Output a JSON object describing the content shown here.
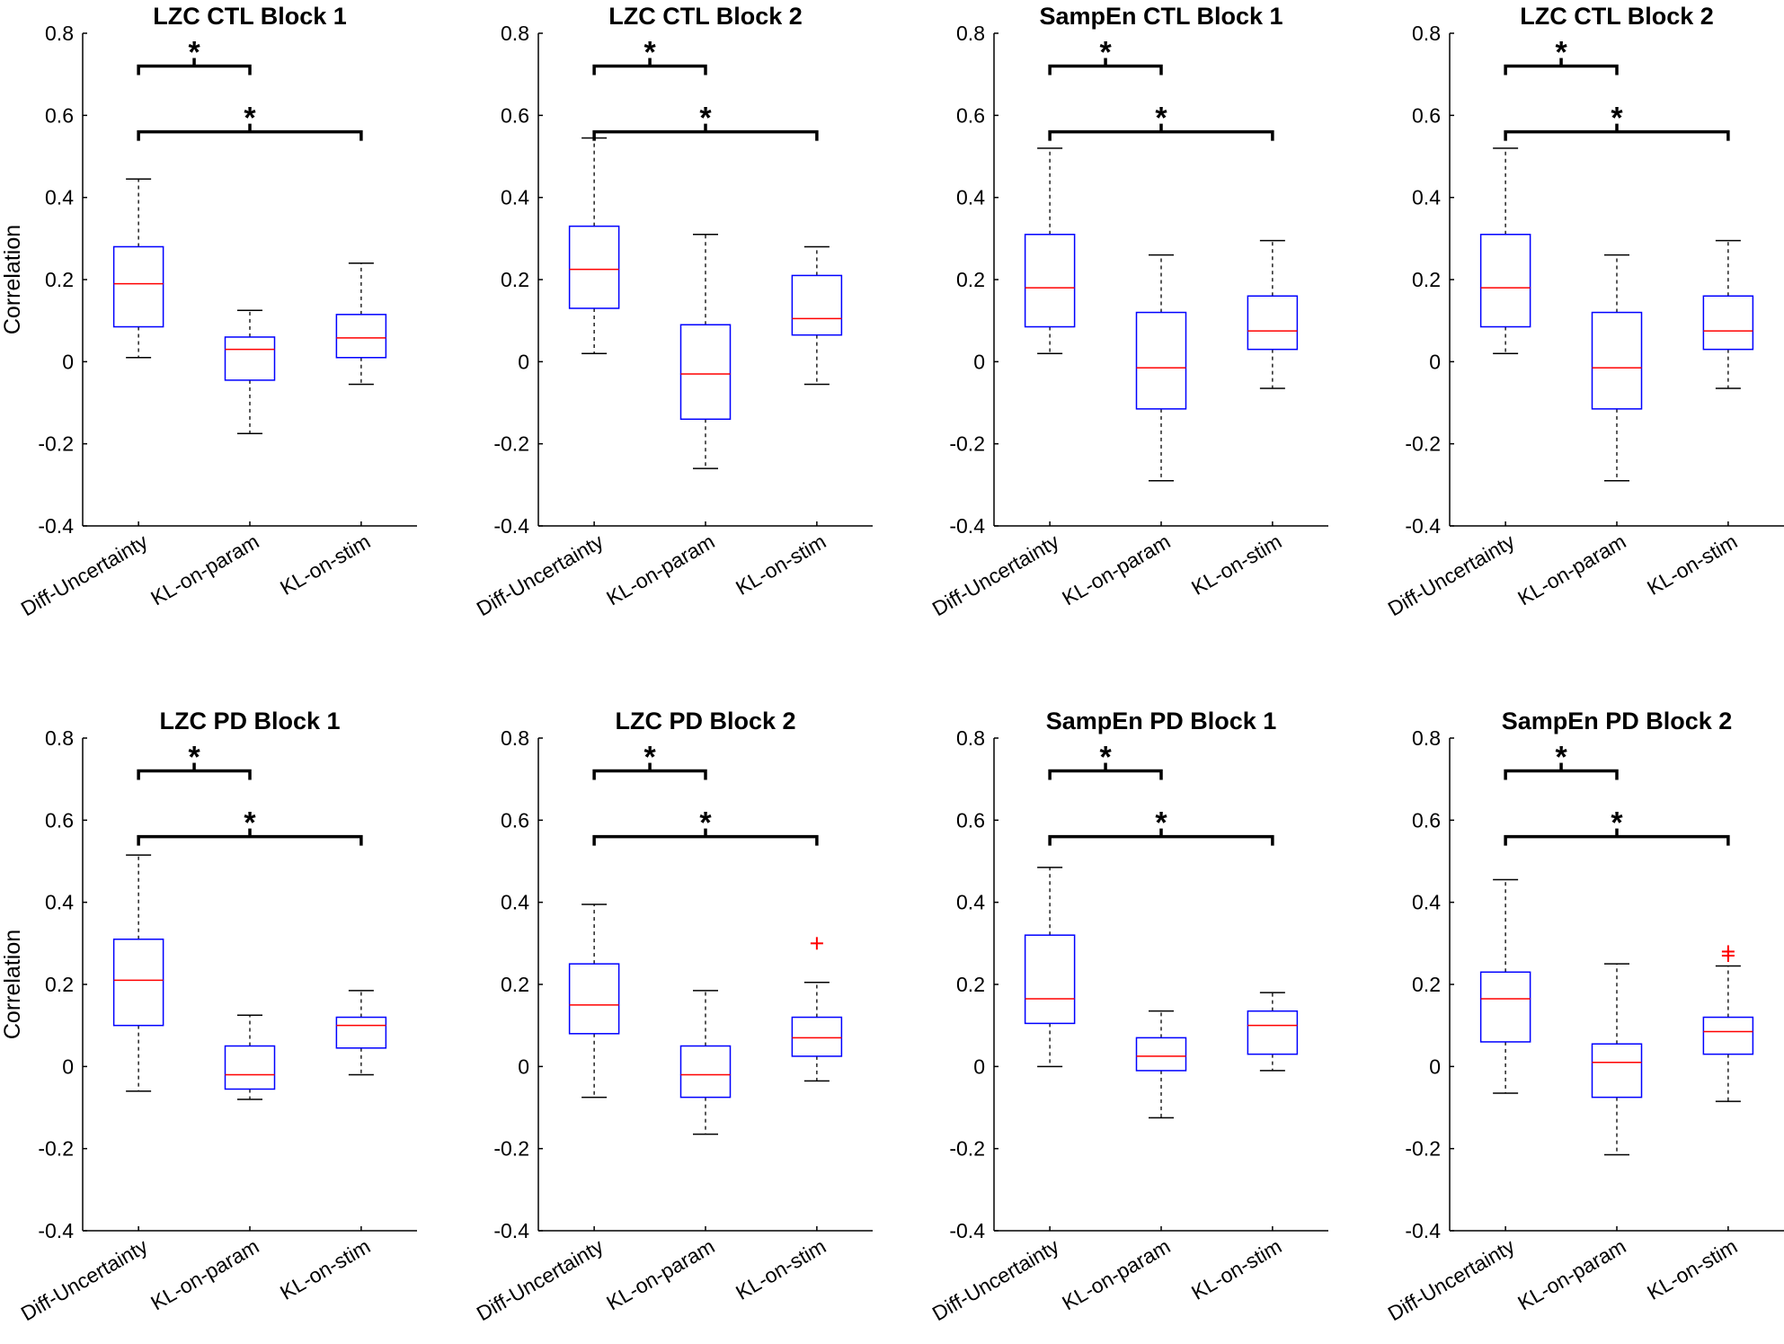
{
  "chart_data": [
    {
      "type": "box",
      "title": "LZC CTL Block 1",
      "ylabel": "Correlation",
      "ylim": [
        -0.4,
        0.8
      ],
      "yticks": [
        "-0.4",
        "-0.2",
        "0",
        "0.2",
        "0.4",
        "0.6",
        "0.8"
      ],
      "categories": [
        "Diff-Uncertainty",
        "KL-on-param",
        "KL-on-stim"
      ],
      "boxes": [
        {
          "whisker_low": 0.01,
          "q1": 0.085,
          "median": 0.19,
          "q3": 0.28,
          "whisker_high": 0.445,
          "outliers": []
        },
        {
          "whisker_low": -0.175,
          "q1": -0.045,
          "median": 0.03,
          "q3": 0.06,
          "whisker_high": 0.125,
          "outliers": []
        },
        {
          "whisker_low": -0.055,
          "q1": 0.01,
          "median": 0.058,
          "q3": 0.115,
          "whisker_high": 0.24,
          "outliers": []
        }
      ],
      "significance": [
        {
          "from": 0,
          "to": 1,
          "level": 0.72,
          "label": "*"
        },
        {
          "from": 0,
          "to": 2,
          "level": 0.56,
          "label": "*"
        }
      ]
    },
    {
      "type": "box",
      "title": "LZC CTL Block 2",
      "ylabel": "",
      "ylim": [
        -0.4,
        0.8
      ],
      "yticks": [
        "-0.4",
        "-0.2",
        "0",
        "0.2",
        "0.4",
        "0.6",
        "0.8"
      ],
      "categories": [
        "Diff-Uncertainty",
        "KL-on-param",
        "KL-on-stim"
      ],
      "boxes": [
        {
          "whisker_low": 0.02,
          "q1": 0.13,
          "median": 0.225,
          "q3": 0.33,
          "whisker_high": 0.545,
          "outliers": []
        },
        {
          "whisker_low": -0.26,
          "q1": -0.14,
          "median": -0.03,
          "q3": 0.09,
          "whisker_high": 0.31,
          "outliers": []
        },
        {
          "whisker_low": -0.055,
          "q1": 0.065,
          "median": 0.105,
          "q3": 0.21,
          "whisker_high": 0.28,
          "outliers": []
        }
      ],
      "significance": [
        {
          "from": 0,
          "to": 1,
          "level": 0.72,
          "label": "*"
        },
        {
          "from": 0,
          "to": 2,
          "level": 0.56,
          "label": "*"
        }
      ]
    },
    {
      "type": "box",
      "title": "SampEn CTL Block 1",
      "ylabel": "",
      "ylim": [
        -0.4,
        0.8
      ],
      "yticks": [
        "-0.4",
        "-0.2",
        "0",
        "0.2",
        "0.4",
        "0.6",
        "0.8"
      ],
      "categories": [
        "Diff-Uncertainty",
        "KL-on-param",
        "KL-on-stim"
      ],
      "boxes": [
        {
          "whisker_low": 0.02,
          "q1": 0.085,
          "median": 0.18,
          "q3": 0.31,
          "whisker_high": 0.52,
          "outliers": []
        },
        {
          "whisker_low": -0.29,
          "q1": -0.115,
          "median": -0.015,
          "q3": 0.12,
          "whisker_high": 0.26,
          "outliers": []
        },
        {
          "whisker_low": -0.065,
          "q1": 0.03,
          "median": 0.075,
          "q3": 0.16,
          "whisker_high": 0.295,
          "outliers": []
        }
      ],
      "significance": [
        {
          "from": 0,
          "to": 1,
          "level": 0.72,
          "label": "*"
        },
        {
          "from": 0,
          "to": 2,
          "level": 0.56,
          "label": "*"
        }
      ]
    },
    {
      "type": "box",
      "title": "LZC CTL Block 2",
      "ylabel": "",
      "ylim": [
        -0.4,
        0.8
      ],
      "yticks": [
        "-0.4",
        "-0.2",
        "0",
        "0.2",
        "0.4",
        "0.6",
        "0.8"
      ],
      "categories": [
        "Diff-Uncertainty",
        "KL-on-param",
        "KL-on-stim"
      ],
      "boxes": [
        {
          "whisker_low": 0.02,
          "q1": 0.085,
          "median": 0.18,
          "q3": 0.31,
          "whisker_high": 0.52,
          "outliers": []
        },
        {
          "whisker_low": -0.29,
          "q1": -0.115,
          "median": -0.015,
          "q3": 0.12,
          "whisker_high": 0.26,
          "outliers": []
        },
        {
          "whisker_low": -0.065,
          "q1": 0.03,
          "median": 0.075,
          "q3": 0.16,
          "whisker_high": 0.295,
          "outliers": []
        }
      ],
      "significance": [
        {
          "from": 0,
          "to": 1,
          "level": 0.72,
          "label": "*"
        },
        {
          "from": 0,
          "to": 2,
          "level": 0.56,
          "label": "*"
        }
      ]
    },
    {
      "type": "box",
      "title": "LZC PD Block 1",
      "ylabel": "Correlation",
      "ylim": [
        -0.4,
        0.8
      ],
      "yticks": [
        "-0.4",
        "-0.2",
        "0",
        "0.2",
        "0.4",
        "0.6",
        "0.8"
      ],
      "categories": [
        "Diff-Uncertainty",
        "KL-on-param",
        "KL-on-stim"
      ],
      "boxes": [
        {
          "whisker_low": -0.06,
          "q1": 0.1,
          "median": 0.21,
          "q3": 0.31,
          "whisker_high": 0.515,
          "outliers": []
        },
        {
          "whisker_low": -0.08,
          "q1": -0.055,
          "median": -0.02,
          "q3": 0.05,
          "whisker_high": 0.125,
          "outliers": []
        },
        {
          "whisker_low": -0.02,
          "q1": 0.045,
          "median": 0.1,
          "q3": 0.12,
          "whisker_high": 0.185,
          "outliers": []
        }
      ],
      "significance": [
        {
          "from": 0,
          "to": 1,
          "level": 0.72,
          "label": "*"
        },
        {
          "from": 0,
          "to": 2,
          "level": 0.56,
          "label": "*"
        }
      ]
    },
    {
      "type": "box",
      "title": "LZC PD Block 2",
      "ylabel": "",
      "ylim": [
        -0.4,
        0.8
      ],
      "yticks": [
        "-0.4",
        "-0.2",
        "0",
        "0.2",
        "0.4",
        "0.6",
        "0.8"
      ],
      "categories": [
        "Diff-Uncertainty",
        "KL-on-param",
        "KL-on-stim"
      ],
      "boxes": [
        {
          "whisker_low": -0.075,
          "q1": 0.08,
          "median": 0.15,
          "q3": 0.25,
          "whisker_high": 0.395,
          "outliers": []
        },
        {
          "whisker_low": -0.165,
          "q1": -0.075,
          "median": -0.02,
          "q3": 0.05,
          "whisker_high": 0.185,
          "outliers": []
        },
        {
          "whisker_low": -0.035,
          "q1": 0.025,
          "median": 0.07,
          "q3": 0.12,
          "whisker_high": 0.205,
          "outliers": [
            0.3
          ]
        }
      ],
      "significance": [
        {
          "from": 0,
          "to": 1,
          "level": 0.72,
          "label": "*"
        },
        {
          "from": 0,
          "to": 2,
          "level": 0.56,
          "label": "*"
        }
      ]
    },
    {
      "type": "box",
      "title": "SampEn PD Block 1",
      "ylabel": "",
      "ylim": [
        -0.4,
        0.8
      ],
      "yticks": [
        "-0.4",
        "-0.2",
        "0",
        "0.2",
        "0.4",
        "0.6",
        "0.8"
      ],
      "categories": [
        "Diff-Uncertainty",
        "KL-on-param",
        "KL-on-stim"
      ],
      "boxes": [
        {
          "whisker_low": 0.0,
          "q1": 0.105,
          "median": 0.165,
          "q3": 0.32,
          "whisker_high": 0.485,
          "outliers": []
        },
        {
          "whisker_low": -0.125,
          "q1": -0.01,
          "median": 0.025,
          "q3": 0.07,
          "whisker_high": 0.135,
          "outliers": []
        },
        {
          "whisker_low": -0.01,
          "q1": 0.03,
          "median": 0.1,
          "q3": 0.135,
          "whisker_high": 0.18,
          "outliers": []
        }
      ],
      "significance": [
        {
          "from": 0,
          "to": 1,
          "level": 0.72,
          "label": "*"
        },
        {
          "from": 0,
          "to": 2,
          "level": 0.56,
          "label": "*"
        }
      ]
    },
    {
      "type": "box",
      "title": "SampEn PD Block 2",
      "ylabel": "",
      "ylim": [
        -0.4,
        0.8
      ],
      "yticks": [
        "-0.4",
        "-0.2",
        "0",
        "0.2",
        "0.4",
        "0.6",
        "0.8"
      ],
      "categories": [
        "Diff-Uncertainty",
        "KL-on-param",
        "KL-on-stim"
      ],
      "boxes": [
        {
          "whisker_low": -0.065,
          "q1": 0.06,
          "median": 0.165,
          "q3": 0.23,
          "whisker_high": 0.455,
          "outliers": []
        },
        {
          "whisker_low": -0.215,
          "q1": -0.075,
          "median": 0.01,
          "q3": 0.055,
          "whisker_high": 0.25,
          "outliers": []
        },
        {
          "whisker_low": -0.085,
          "q1": 0.03,
          "median": 0.085,
          "q3": 0.12,
          "whisker_high": 0.245,
          "outliers": [
            0.27,
            0.28
          ]
        }
      ],
      "significance": [
        {
          "from": 0,
          "to": 1,
          "level": 0.72,
          "label": "*"
        },
        {
          "from": 0,
          "to": 2,
          "level": 0.56,
          "label": "*"
        }
      ]
    }
  ],
  "colors": {
    "box": "#0000ff",
    "median": "#ff0000",
    "outlier": "#ff0000",
    "whisker": "#000000",
    "axis": "#000000",
    "background": "#ffffff"
  }
}
